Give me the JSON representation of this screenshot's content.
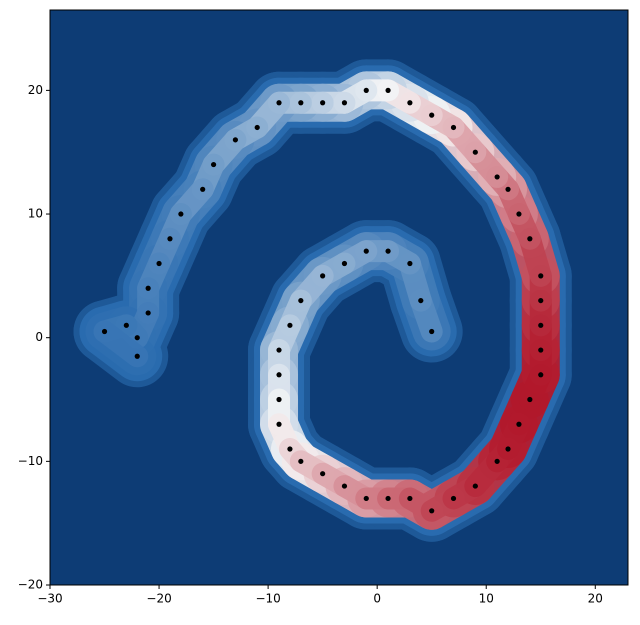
{
  "chart_data": {
    "type": "scatter",
    "x": [
      5,
      4,
      3,
      1,
      -1,
      -3,
      -5,
      -7,
      -8,
      -9,
      -9,
      -9,
      -9,
      -8,
      -7,
      -5,
      -3,
      -1,
      1,
      3,
      5,
      7,
      9,
      11,
      12,
      13,
      14,
      15,
      15,
      15,
      15,
      15,
      14,
      13,
      12,
      11,
      9,
      7,
      5,
      3,
      1,
      -1,
      -3,
      -5,
      -7,
      -9,
      -11,
      -13,
      -15,
      -16,
      -18,
      -19,
      -20,
      -21,
      -21,
      -22,
      -23,
      -25,
      -22
    ],
    "y": [
      0.5,
      3,
      6,
      7,
      7,
      6,
      5,
      3,
      1,
      -1,
      -3,
      -5,
      -7,
      -9,
      -10,
      -11,
      -12,
      -13,
      -13,
      -13,
      -14,
      -13,
      -12,
      -10,
      -9,
      -7,
      -5,
      -3,
      -1,
      1,
      3,
      5,
      8,
      10,
      12,
      13,
      15,
      17,
      18,
      19,
      20,
      20,
      19,
      19,
      19,
      19,
      17,
      16,
      14,
      12,
      10,
      8,
      6,
      4,
      2,
      0,
      1,
      0.5,
      -1.5
    ],
    "color": "#000000",
    "background_color": "#0d3c75",
    "band_colors": [
      "#2a6cb0",
      "#f7f7f7",
      "#b2182b"
    ],
    "xlim": [
      -30,
      23
    ],
    "ylim": [
      -20,
      26.5
    ],
    "xticks": [
      {
        "value": -30,
        "label": "−30"
      },
      {
        "value": -20,
        "label": "−20"
      },
      {
        "value": -10,
        "label": "−10"
      },
      0,
      10,
      20
    ],
    "yticks": [
      {
        "value": -20,
        "label": "−20"
      },
      {
        "value": -10,
        "label": "−10"
      },
      0,
      10,
      20
    ]
  }
}
